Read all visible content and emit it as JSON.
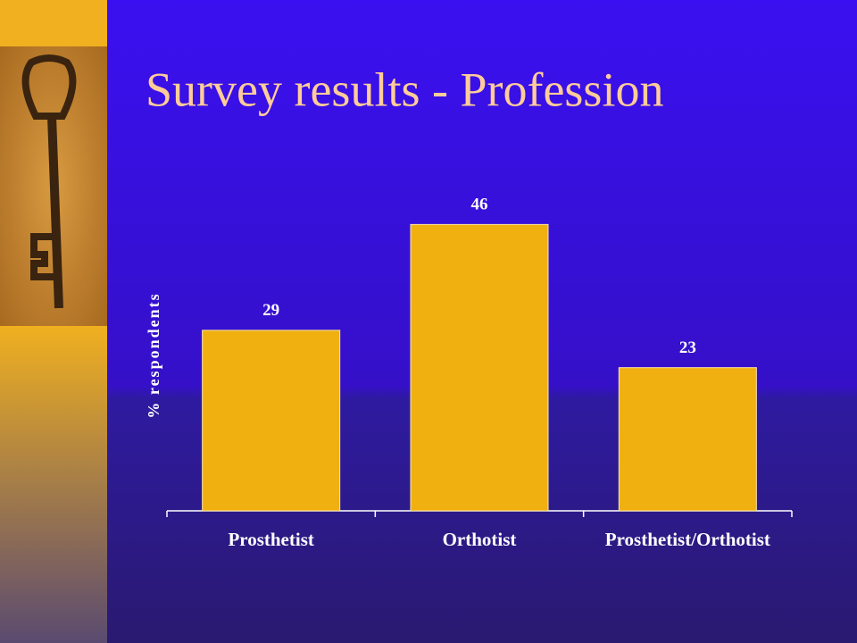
{
  "chart_data": {
    "type": "bar",
    "title": "Survey results - Profession",
    "ylabel": "% respondents",
    "categories": [
      "Prosthetist",
      "Orthotist",
      "Prosthetist/Orthotist"
    ],
    "values": [
      29,
      46,
      23
    ],
    "color": "#f0b010"
  }
}
